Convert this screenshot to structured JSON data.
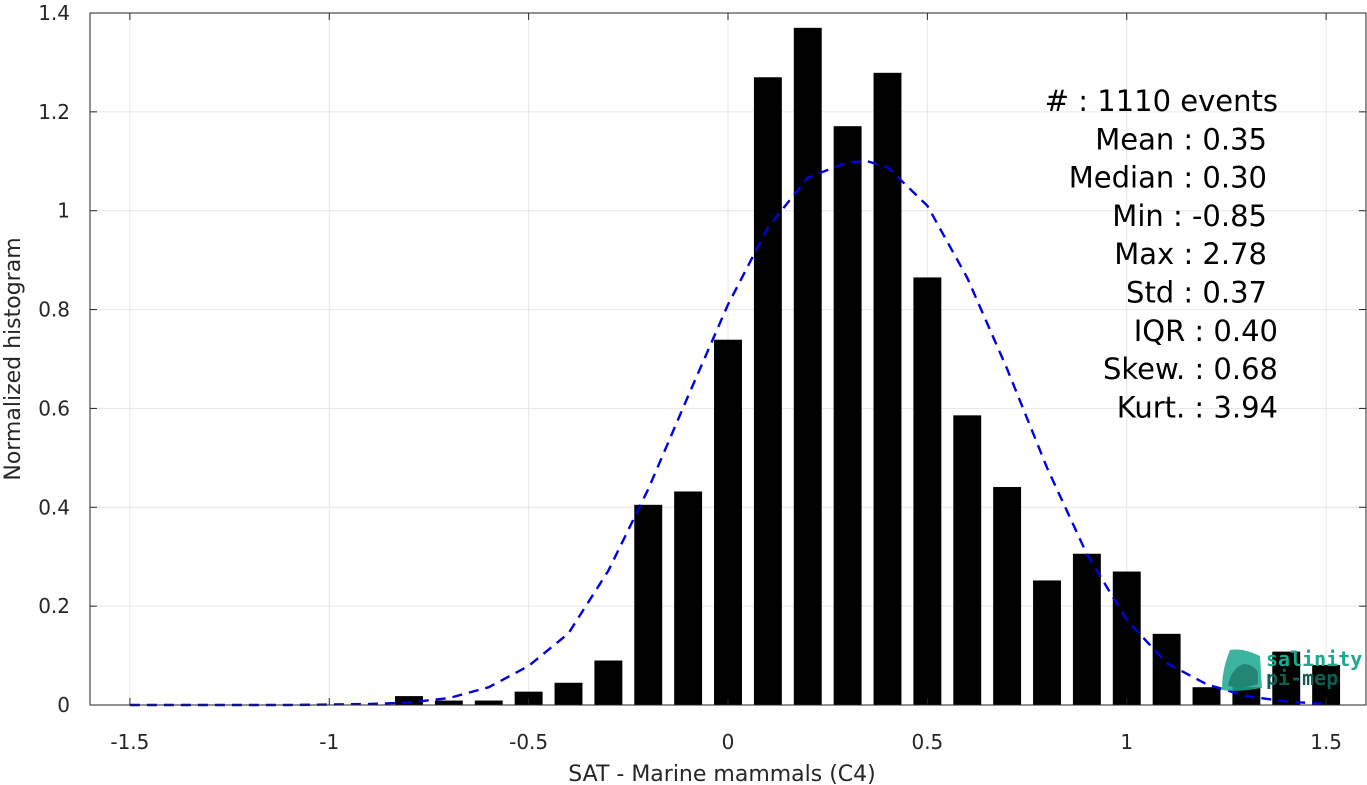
{
  "chart_data": {
    "type": "bar",
    "xlabel": "SAT - Marine mammals (C4)",
    "ylabel": "Normalized histogram",
    "xlim": [
      -1.6,
      1.6
    ],
    "ylim": [
      0,
      1.4
    ],
    "grid": true,
    "xticks": [
      -1.5,
      -1,
      -0.5,
      0,
      0.5,
      1,
      1.5
    ],
    "xtick_labels": [
      "-1.5",
      "-1",
      "-0.5",
      "0",
      "0.5",
      "1",
      "1.5"
    ],
    "yticks": [
      0,
      0.2,
      0.4,
      0.6,
      0.8,
      1,
      1.2,
      1.4
    ],
    "ytick_labels": [
      "0",
      "0.2",
      "0.4",
      "0.6",
      "0.8",
      "1",
      "1.2",
      "1.4"
    ],
    "bar_width": 0.07,
    "bar_color": "#000000",
    "bars": [
      {
        "x": -0.8,
        "y": 0.018
      },
      {
        "x": -0.7,
        "y": 0.009
      },
      {
        "x": -0.6,
        "y": 0.009
      },
      {
        "x": -0.5,
        "y": 0.027
      },
      {
        "x": -0.4,
        "y": 0.045
      },
      {
        "x": -0.3,
        "y": 0.09
      },
      {
        "x": -0.2,
        "y": 0.405
      },
      {
        "x": -0.1,
        "y": 0.432
      },
      {
        "x": 0.0,
        "y": 0.739
      },
      {
        "x": 0.1,
        "y": 1.27
      },
      {
        "x": 0.2,
        "y": 1.37
      },
      {
        "x": 0.3,
        "y": 1.171
      },
      {
        "x": 0.4,
        "y": 1.279
      },
      {
        "x": 0.5,
        "y": 0.865
      },
      {
        "x": 0.6,
        "y": 0.586
      },
      {
        "x": 0.7,
        "y": 0.441
      },
      {
        "x": 0.8,
        "y": 0.252
      },
      {
        "x": 0.9,
        "y": 0.306
      },
      {
        "x": 1.0,
        "y": 0.27
      },
      {
        "x": 1.1,
        "y": 0.144
      },
      {
        "x": 1.2,
        "y": 0.036
      },
      {
        "x": 1.3,
        "y": 0.036
      },
      {
        "x": 1.4,
        "y": 0.108
      },
      {
        "x": 1.5,
        "y": 0.081
      }
    ],
    "fit_curve": {
      "style": "dashed",
      "color": "#0000e0",
      "x": [
        -1.5,
        -1.4,
        -1.3,
        -1.2,
        -1.1,
        -1.0,
        -0.9,
        -0.8,
        -0.7,
        -0.6,
        -0.5,
        -0.4,
        -0.3,
        -0.2,
        -0.1,
        0.0,
        0.1,
        0.2,
        0.3,
        0.35,
        0.4,
        0.5,
        0.6,
        0.7,
        0.8,
        0.9,
        1.0,
        1.1,
        1.2,
        1.3,
        1.4,
        1.5
      ],
      "y": [
        0.0,
        0.0,
        0.0,
        0.0,
        0.0,
        0.001,
        0.002,
        0.005,
        0.014,
        0.036,
        0.079,
        0.145,
        0.272,
        0.437,
        0.625,
        0.81,
        0.966,
        1.067,
        1.098,
        1.1,
        1.088,
        1.01,
        0.864,
        0.68,
        0.48,
        0.305,
        0.172,
        0.085,
        0.042,
        0.018,
        0.007,
        0.002
      ]
    },
    "stats": [
      "#  : 1110 events",
      "Mean : 0.35",
      "Median : 0.30",
      "Min : -0.85",
      "Max : 2.78",
      "Std : 0.37",
      "IQR : 0.40",
      "Skew. : 0.68",
      "Kurt. : 3.94"
    ]
  },
  "logo": {
    "line1": "salinity",
    "line2": "pi-mep",
    "color": "#1aa88f",
    "dark_color": "#0f5e52"
  }
}
